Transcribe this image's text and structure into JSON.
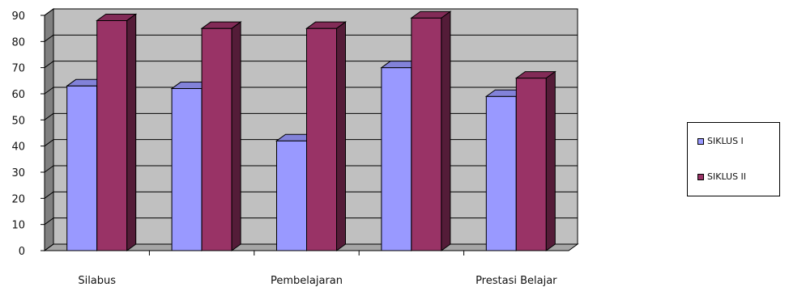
{
  "chart_data": {
    "type": "bar",
    "categories": [
      "Silabus",
      "",
      "Pembelajaran",
      "",
      "Prestasi Belajar"
    ],
    "series": [
      {
        "name": "SIKLUS I",
        "values": [
          63,
          62,
          42,
          70,
          59
        ]
      },
      {
        "name": "SIKLUS II",
        "values": [
          88,
          85,
          85,
          89,
          66
        ]
      }
    ],
    "ylim": [
      0,
      90
    ],
    "yticks": [
      0,
      10,
      20,
      30,
      40,
      50,
      60,
      70,
      80,
      90
    ],
    "grid": true,
    "legend_position": "right",
    "style": "3d-clustered-column",
    "title": "",
    "xlabel": "",
    "ylabel": "",
    "colors": {
      "series1": "#9999ff",
      "series2": "#993366",
      "background": "#c0c0c0",
      "wall_side": "#808080",
      "floor": "#a6a6a6"
    }
  }
}
